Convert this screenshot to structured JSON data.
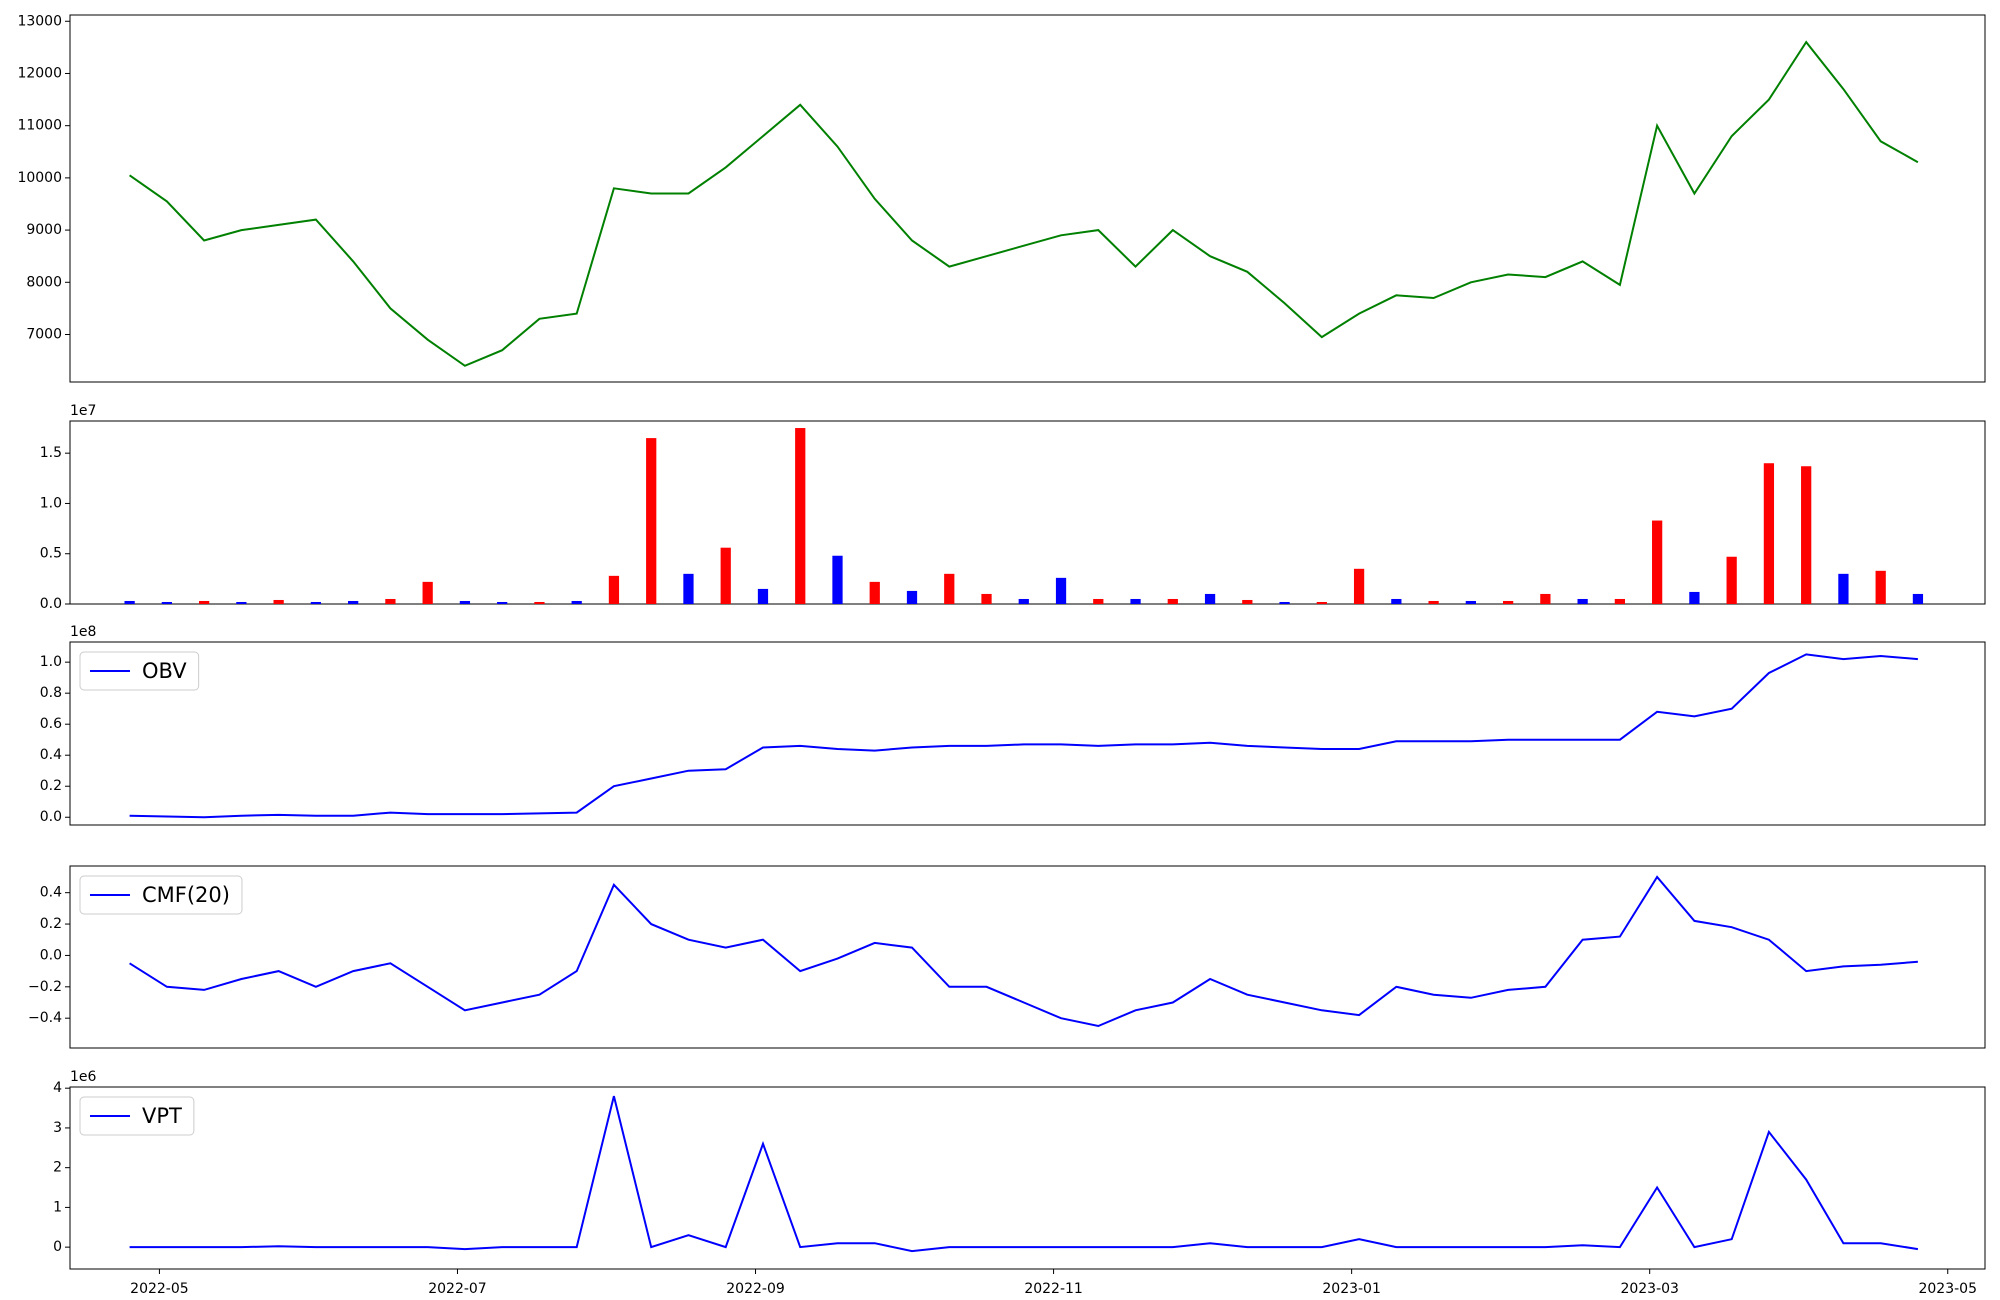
{
  "chart_data": [
    {
      "type": "line",
      "color": "#008000",
      "x": [
        4.8,
        5.05,
        5.3,
        5.55,
        5.8,
        6.05,
        6.3,
        6.55,
        6.8,
        7.05,
        7.3,
        7.55,
        7.8,
        8.05,
        8.3,
        8.55,
        8.8,
        9.05,
        9.3,
        9.55,
        9.8,
        10.05,
        10.3,
        10.55,
        10.8,
        11.05,
        11.3,
        11.55,
        11.8,
        12.05,
        12.3,
        12.55,
        12.8,
        13.05,
        13.3,
        13.55,
        13.8,
        14.05,
        14.3,
        14.55,
        14.8,
        15.05,
        15.3,
        15.55,
        15.8,
        16.05,
        16.3,
        16.55,
        16.8
      ],
      "values": [
        10050,
        9550,
        8800,
        9000,
        9100,
        9200,
        8400,
        7500,
        6900,
        6400,
        6700,
        7300,
        7400,
        9800,
        9700,
        9700,
        10200,
        10800,
        11400,
        10600,
        9600,
        8800,
        8300,
        8500,
        8700,
        8900,
        9000,
        8300,
        9000,
        8500,
        8200,
        7600,
        6950,
        7400,
        7750,
        7700,
        8000,
        8150,
        8100,
        8400,
        7950,
        11000,
        9700,
        10800,
        11500,
        12600,
        11700,
        10700,
        10300
      ],
      "xlim": [
        4.4,
        17.25
      ],
      "ylim": [
        6090,
        13120
      ],
      "yticks": [
        7000,
        8000,
        9000,
        10000,
        11000,
        12000,
        13000
      ]
    },
    {
      "type": "bar",
      "offset_label": "1e7",
      "x": [
        4.8,
        5.05,
        5.3,
        5.55,
        5.8,
        6.05,
        6.3,
        6.55,
        6.8,
        7.05,
        7.3,
        7.55,
        7.8,
        8.05,
        8.3,
        8.55,
        8.8,
        9.05,
        9.3,
        9.55,
        9.8,
        10.05,
        10.3,
        10.55,
        10.8,
        11.05,
        11.3,
        11.55,
        11.8,
        12.05,
        12.3,
        12.55,
        12.8,
        13.05,
        13.3,
        13.55,
        13.8,
        14.05,
        14.3,
        14.55,
        14.8,
        15.05,
        15.3,
        15.55,
        15.8,
        16.05,
        16.3,
        16.55,
        16.8
      ],
      "values": [
        0.03,
        0.02,
        0.03,
        0.02,
        0.04,
        0.02,
        0.03,
        0.05,
        0.22,
        0.03,
        0.02,
        0.02,
        0.03,
        0.28,
        1.65,
        0.3,
        0.56,
        0.15,
        1.75,
        0.48,
        0.22,
        0.13,
        0.3,
        0.1,
        0.05,
        0.26,
        0.05,
        0.05,
        0.05,
        0.1,
        0.04,
        0.02,
        0.02,
        0.35,
        0.05,
        0.03,
        0.03,
        0.03,
        0.1,
        0.05,
        0.05,
        0.83,
        0.12,
        0.47,
        1.4,
        1.37,
        0.3,
        0.33,
        0.1
      ],
      "colors": [
        "blue",
        "blue",
        "red",
        "blue",
        "red",
        "blue",
        "blue",
        "red",
        "red",
        "blue",
        "blue",
        "red",
        "blue",
        "red",
        "red",
        "blue",
        "red",
        "blue",
        "red",
        "blue",
        "red",
        "blue",
        "red",
        "red",
        "blue",
        "blue",
        "red",
        "blue",
        "red",
        "blue",
        "red",
        "blue",
        "red",
        "red",
        "blue",
        "red",
        "blue",
        "red",
        "red",
        "blue",
        "red",
        "red",
        "blue",
        "red",
        "red",
        "red",
        "blue",
        "red",
        "blue"
      ],
      "xlim": [
        4.4,
        17.25
      ],
      "ylim": [
        0,
        1.82
      ],
      "yticks": [
        {
          "value": 0,
          "label": "0.0"
        },
        {
          "value": 0.5,
          "label": "0.5"
        },
        {
          "value": 1,
          "label": "1.0"
        },
        {
          "value": 1.5,
          "label": "1.5"
        }
      ]
    },
    {
      "type": "line",
      "offset_label": "1e8",
      "x": [
        4.8,
        5.05,
        5.3,
        5.55,
        5.8,
        6.05,
        6.3,
        6.55,
        6.8,
        7.05,
        7.3,
        7.55,
        7.8,
        8.05,
        8.3,
        8.55,
        8.8,
        9.05,
        9.3,
        9.55,
        9.8,
        10.05,
        10.3,
        10.55,
        10.8,
        11.05,
        11.3,
        11.55,
        11.8,
        12.05,
        12.3,
        12.55,
        12.8,
        13.05,
        13.3,
        13.55,
        13.8,
        14.05,
        14.3,
        14.55,
        14.8,
        15.05,
        15.3,
        15.55,
        15.8,
        16.05,
        16.3,
        16.55,
        16.8
      ],
      "series": [
        {
          "name": "OBV",
          "color": "#0000ff",
          "values": [
            0.01,
            0.005,
            0.0,
            0.01,
            0.015,
            0.01,
            0.01,
            0.03,
            0.02,
            0.02,
            0.02,
            0.025,
            0.03,
            0.2,
            0.25,
            0.3,
            0.31,
            0.45,
            0.46,
            0.44,
            0.43,
            0.45,
            0.46,
            0.46,
            0.47,
            0.47,
            0.46,
            0.47,
            0.47,
            0.48,
            0.46,
            0.45,
            0.44,
            0.44,
            0.49,
            0.49,
            0.49,
            0.5,
            0.5,
            0.5,
            0.5,
            0.68,
            0.65,
            0.7,
            0.93,
            1.05,
            1.02,
            1.04,
            1.02
          ]
        }
      ],
      "xlim": [
        4.4,
        17.25
      ],
      "ylim": [
        -0.05,
        1.13
      ],
      "yticks": [
        {
          "value": 0,
          "label": "0.0"
        },
        {
          "value": 0.2,
          "label": "0.2"
        },
        {
          "value": 0.4,
          "label": "0.4"
        },
        {
          "value": 0.6,
          "label": "0.6"
        },
        {
          "value": 0.8,
          "label": "0.8"
        },
        {
          "value": 1,
          "label": "1.0"
        }
      ]
    },
    {
      "type": "line",
      "x": [
        4.8,
        5.05,
        5.3,
        5.55,
        5.8,
        6.05,
        6.3,
        6.55,
        6.8,
        7.05,
        7.3,
        7.55,
        7.8,
        8.05,
        8.3,
        8.55,
        8.8,
        9.05,
        9.3,
        9.55,
        9.8,
        10.05,
        10.3,
        10.55,
        10.8,
        11.05,
        11.3,
        11.55,
        11.8,
        12.05,
        12.3,
        12.55,
        12.8,
        13.05,
        13.3,
        13.55,
        13.8,
        14.05,
        14.3,
        14.55,
        14.8,
        15.05,
        15.3,
        15.55,
        15.8,
        16.05,
        16.3,
        16.55,
        16.8
      ],
      "series": [
        {
          "name": "CMF(20)",
          "color": "#0000ff",
          "values": [
            -0.05,
            -0.2,
            -0.22,
            -0.15,
            -0.1,
            -0.2,
            -0.1,
            -0.05,
            -0.2,
            -0.35,
            -0.3,
            -0.25,
            -0.1,
            0.45,
            0.2,
            0.1,
            0.05,
            0.1,
            -0.1,
            -0.02,
            0.08,
            0.05,
            -0.2,
            -0.2,
            -0.3,
            -0.4,
            -0.45,
            -0.35,
            -0.3,
            -0.15,
            -0.25,
            -0.3,
            -0.35,
            -0.38,
            -0.2,
            -0.25,
            -0.27,
            -0.22,
            -0.2,
            0.1,
            0.12,
            0.5,
            0.22,
            0.18,
            0.1,
            -0.1,
            -0.07,
            -0.06,
            -0.04
          ]
        }
      ],
      "xlim": [
        4.4,
        17.25
      ],
      "ylim": [
        -0.59,
        0.57
      ],
      "yticks": [
        {
          "value": -0.4,
          "label": "−0.4"
        },
        {
          "value": -0.2,
          "label": "−0.2"
        },
        {
          "value": 0,
          "label": "0.0"
        },
        {
          "value": 0.2,
          "label": "0.2"
        },
        {
          "value": 0.4,
          "label": "0.4"
        }
      ]
    },
    {
      "type": "line",
      "offset_label": "1e6",
      "x": [
        4.8,
        5.05,
        5.3,
        5.55,
        5.8,
        6.05,
        6.3,
        6.55,
        6.8,
        7.05,
        7.3,
        7.55,
        7.8,
        8.05,
        8.3,
        8.55,
        8.8,
        9.05,
        9.3,
        9.55,
        9.8,
        10.05,
        10.3,
        10.55,
        10.8,
        11.05,
        11.3,
        11.55,
        11.8,
        12.05,
        12.3,
        12.55,
        12.8,
        13.05,
        13.3,
        13.55,
        13.8,
        14.05,
        14.3,
        14.55,
        14.8,
        15.05,
        15.3,
        15.55,
        15.8,
        16.05,
        16.3,
        16.55,
        16.8
      ],
      "series": [
        {
          "name": "VPT",
          "color": "#0000ff",
          "values": [
            0,
            0,
            0,
            0,
            0.02,
            0,
            0,
            0,
            0,
            -0.05,
            0,
            0,
            0,
            3.8,
            0,
            0.3,
            0,
            2.6,
            0,
            0.1,
            0.1,
            -0.1,
            0,
            0,
            0,
            0,
            0,
            0,
            0,
            0.1,
            0,
            0,
            0,
            0.2,
            0,
            0,
            0,
            0,
            0,
            0.05,
            0,
            1.5,
            0,
            0.2,
            2.9,
            1.7,
            0.1,
            0.1,
            -0.05
          ]
        }
      ],
      "xlim": [
        4.4,
        17.25
      ],
      "ylim": [
        -0.55,
        4.03
      ],
      "yticks": [
        0,
        1,
        2,
        3,
        4
      ],
      "xticks": [
        {
          "value": 5,
          "label": "2022-05"
        },
        {
          "value": 7,
          "label": "2022-07"
        },
        {
          "value": 9,
          "label": "2022-09"
        },
        {
          "value": 11,
          "label": "2022-11"
        },
        {
          "value": 13,
          "label": "2023-01"
        },
        {
          "value": 15,
          "label": "2023-03"
        },
        {
          "value": 17,
          "label": "2023-05"
        }
      ]
    }
  ]
}
